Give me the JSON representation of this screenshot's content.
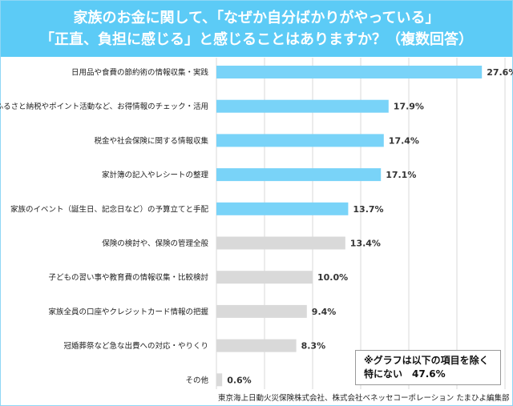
{
  "chart_data": {
    "type": "bar",
    "orientation": "horizontal",
    "title_lines": [
      "家族のお金に関して、「なぜか自分ばかりがやっている」",
      "「正直、負担に感じる」と感じることはありますか？（複数回答）"
    ],
    "categories": [
      "日用品や食費の節約術の情報収集・実践",
      "ふるさと納税やポイント活動など、お得情報のチェック・活用",
      "税金や社会保険に関する情報収集",
      "家計簿の記入やレシートの整理",
      "家族のイベント（誕生日、記念日など）の予算立てと手配",
      "保険の検討や、保険の管理全般",
      "子どもの習い事や教育費の情報収集・比較検討",
      "家族全員の口座やクレジットカード情報の把握",
      "冠婚葬祭など急な出費への対応・やりくり",
      "その他"
    ],
    "values": [
      27.6,
      17.9,
      17.4,
      17.1,
      13.7,
      13.4,
      10.0,
      9.4,
      8.3,
      0.6
    ],
    "value_labels": [
      "27.6%",
      "17.9%",
      "17.4%",
      "17.1%",
      "13.7%",
      "13.4%",
      "10.0%",
      "9.4%",
      "8.3%",
      "0.6%"
    ],
    "highlighted_count": 5,
    "colors": {
      "highlight": "#79d3f8",
      "other": "#d9d9d9",
      "header": "#5ccbf6"
    },
    "xlim": [
      0,
      30
    ],
    "grid": true,
    "grid_step": 5
  },
  "note": {
    "line1": "※グラフは以下の項目を除く",
    "line2": "特にない　47.6%"
  },
  "source": "東京海上日動火災保険株式会社、株式会社ベネッセコーポレーション たまひよ編集部"
}
